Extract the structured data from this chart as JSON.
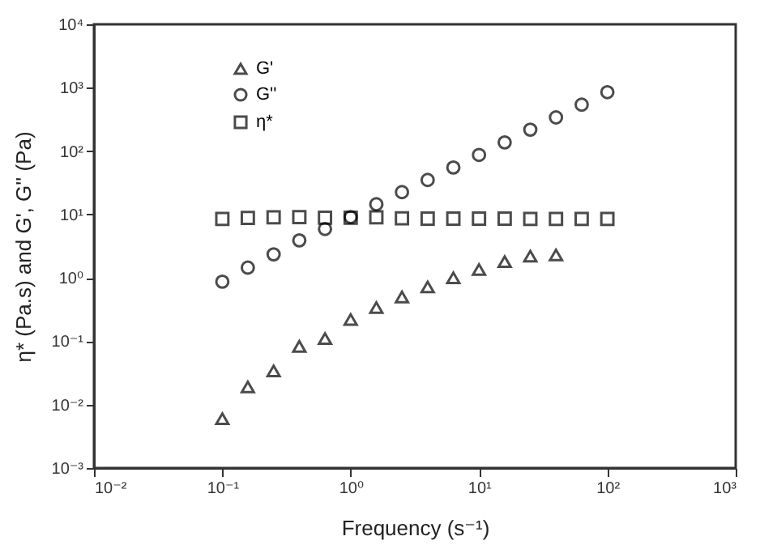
{
  "chart_data": {
    "type": "scatter",
    "xlabel": "Frequency (s⁻¹)",
    "ylabel": "η* (Pa.s) and G', G'' (Pa)",
    "x": [
      0.1,
      0.158,
      0.251,
      0.398,
      0.631,
      1,
      1.585,
      2.51,
      3.98,
      6.31,
      10,
      15.85,
      25.1,
      39.8,
      63.1,
      100
    ],
    "series": [
      {
        "name": "G'",
        "color": "#000000",
        "marker": "triangle",
        "values": [
          0.006,
          0.019,
          0.034,
          0.083,
          0.11,
          0.22,
          0.34,
          0.5,
          0.72,
          1.0,
          1.35,
          1.8,
          2.2,
          2.3,
          null,
          null
        ]
      },
      {
        "name": "G''",
        "color": "#000000",
        "marker": "circle",
        "values": [
          0.87,
          1.45,
          2.35,
          3.9,
          5.9,
          9.1,
          14.5,
          22.5,
          35,
          55,
          87,
          137,
          218,
          340,
          540,
          850
        ]
      },
      {
        "name": "η*",
        "color": "#000000",
        "marker": "square",
        "values": [
          8.5,
          8.8,
          9.0,
          9.1,
          8.9,
          8.9,
          9.0,
          8.7,
          8.6,
          8.6,
          8.6,
          8.6,
          8.5,
          8.5,
          8.5,
          8.5
        ]
      }
    ],
    "log": "xy",
    "xlim": [
      0.01,
      1000
    ],
    "ylim": [
      0.001,
      10000
    ],
    "xticks": [
      {
        "value": 0.01,
        "label": "10⁻²"
      },
      {
        "value": 0.1,
        "label": "10⁻¹"
      },
      {
        "value": 1,
        "label": "10⁰"
      },
      {
        "value": 10,
        "label": "10¹"
      },
      {
        "value": 100,
        "label": "10²"
      },
      {
        "value": 1000,
        "label": "10³"
      }
    ],
    "yticks": [
      {
        "value": 0.001,
        "label": "10⁻³"
      },
      {
        "value": 0.01,
        "label": "10⁻²"
      },
      {
        "value": 0.1,
        "label": "10⁻¹"
      },
      {
        "value": 1,
        "label": "10⁰"
      },
      {
        "value": 10,
        "label": "10¹"
      },
      {
        "value": 100,
        "label": "10²"
      },
      {
        "value": 1000,
        "label": "10³"
      },
      {
        "value": 10000,
        "label": "10⁴"
      }
    ],
    "grid": false,
    "legend": "top left"
  }
}
